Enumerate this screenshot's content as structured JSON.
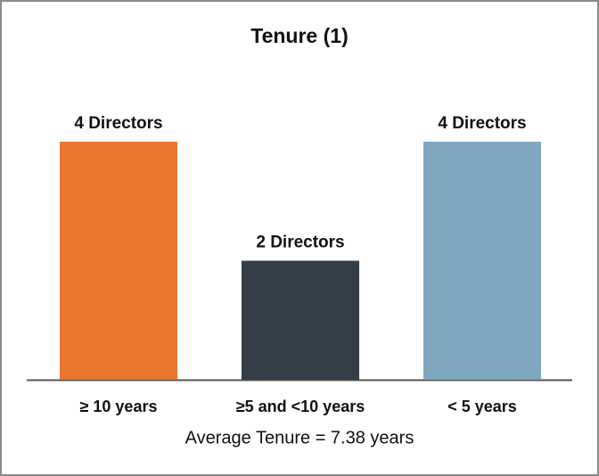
{
  "chart_data": {
    "type": "bar",
    "title": "Tenure (1)",
    "categories": [
      "≥ 10 years",
      "≥5 and <10  years",
      "< 5 years"
    ],
    "values": [
      4,
      2,
      4
    ],
    "value_labels": [
      "4 Directors",
      "2 Directors",
      "4 Directors"
    ],
    "colors": [
      "#e8762c",
      "#343e48",
      "#7ea7bf"
    ],
    "annotation": "Average Tenure = 7.38 years"
  }
}
